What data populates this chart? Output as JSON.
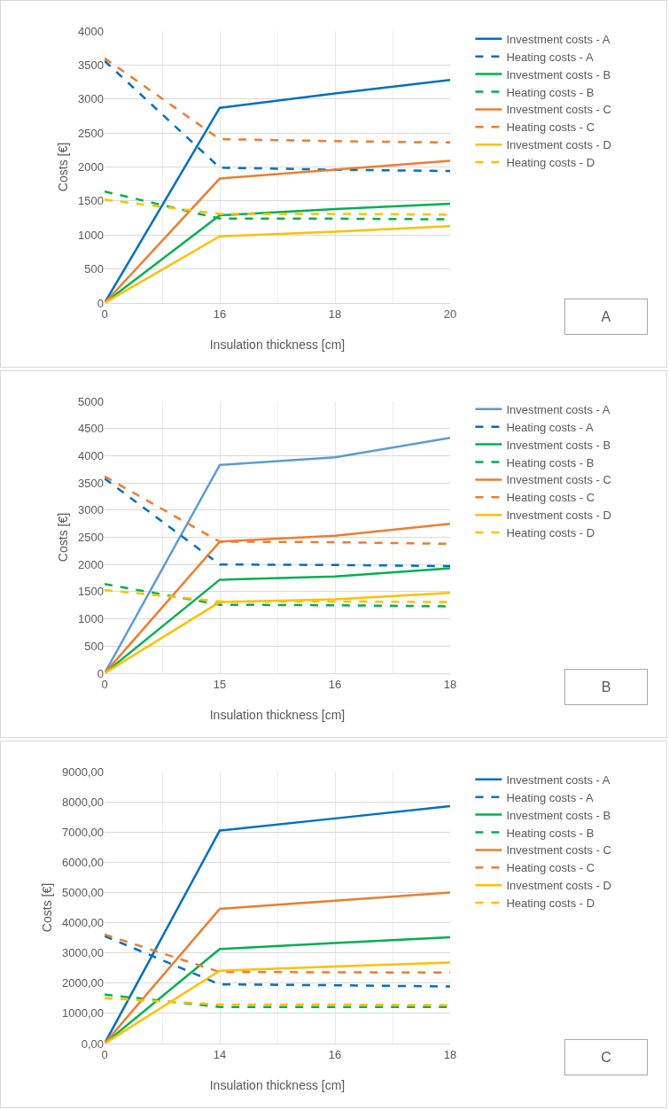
{
  "chart_data": [
    {
      "type": "line",
      "categories": [
        "0",
        "16",
        "18",
        "20"
      ],
      "xlabel": "Insulation thickness [cm]",
      "ylabel": "Costs [€]",
      "ylim": [
        0,
        4000
      ],
      "yticks": [
        0,
        500,
        1000,
        1500,
        2000,
        2500,
        3000,
        3500,
        4000
      ],
      "grid": true,
      "legend": "right",
      "marker": "none",
      "annotations": [
        "A"
      ],
      "series": [
        {
          "name": "Investment costs - A",
          "color": "#0070c0",
          "line_style": "solid",
          "values": [
            0,
            2870,
            3080,
            3280
          ]
        },
        {
          "name": "Heating costs - A",
          "color": "#0070c0",
          "line_style": "dashed",
          "values": [
            3560,
            1990,
            1960,
            1940
          ]
        },
        {
          "name": "Investment costs - B",
          "color": "#00b050",
          "line_style": "solid",
          "values": [
            0,
            1290,
            1380,
            1460
          ]
        },
        {
          "name": "Heating costs - B",
          "color": "#00b050",
          "line_style": "dashed",
          "values": [
            1640,
            1240,
            1240,
            1230
          ]
        },
        {
          "name": "Investment costs - C",
          "color": "#ed7d31",
          "line_style": "solid",
          "values": [
            0,
            1830,
            1960,
            2090
          ]
        },
        {
          "name": "Heating costs - C",
          "color": "#ed7d31",
          "line_style": "dashed",
          "values": [
            3600,
            2410,
            2380,
            2360
          ]
        },
        {
          "name": "Investment costs - D",
          "color": "#ffc000",
          "line_style": "solid",
          "values": [
            0,
            980,
            1050,
            1130
          ]
        },
        {
          "name": "Heating costs - D",
          "color": "#ffc000",
          "line_style": "dashed",
          "values": [
            1520,
            1310,
            1310,
            1300
          ]
        }
      ]
    },
    {
      "type": "line",
      "categories": [
        "0",
        "15",
        "16",
        "18"
      ],
      "xlabel": "Insulation thickness [cm]",
      "ylabel": "Costs [€]",
      "ylim": [
        0,
        5000
      ],
      "yticks": [
        0,
        500,
        1000,
        1500,
        2000,
        2500,
        3000,
        3500,
        4000,
        4500,
        5000
      ],
      "grid": true,
      "legend": "right",
      "marker": "none",
      "annotations": [
        "B"
      ],
      "series": [
        {
          "name": "Investment costs - A",
          "color": "#5b9bd5",
          "line_style": "solid",
          "values": [
            0,
            3830,
            3970,
            4330
          ]
        },
        {
          "name": "Heating costs - A",
          "color": "#0070c0",
          "line_style": "dashed",
          "values": [
            3580,
            2000,
            1990,
            1970
          ]
        },
        {
          "name": "Investment costs - B",
          "color": "#00b050",
          "line_style": "solid",
          "values": [
            0,
            1720,
            1780,
            1930
          ]
        },
        {
          "name": "Heating costs - B",
          "color": "#00b050",
          "line_style": "dashed",
          "values": [
            1640,
            1260,
            1250,
            1230
          ]
        },
        {
          "name": "Investment costs - C",
          "color": "#ed7d31",
          "line_style": "solid",
          "values": [
            0,
            2420,
            2530,
            2750
          ]
        },
        {
          "name": "Heating costs - C",
          "color": "#ed7d31",
          "line_style": "dashed",
          "values": [
            3620,
            2420,
            2410,
            2380
          ]
        },
        {
          "name": "Investment costs - D",
          "color": "#ffc000",
          "line_style": "solid",
          "values": [
            0,
            1310,
            1360,
            1480
          ]
        },
        {
          "name": "Heating costs - D",
          "color": "#ffc000",
          "line_style": "dashed",
          "values": [
            1530,
            1320,
            1320,
            1310
          ]
        }
      ]
    },
    {
      "type": "line",
      "categories": [
        "0",
        "14",
        "16",
        "18"
      ],
      "xlabel": "Insulation thickness [cm]",
      "ylabel": "Costs [€]",
      "ylim": [
        0,
        9000
      ],
      "yticks": [
        {
          "value": 0,
          "label": "0,00"
        },
        {
          "value": 1000,
          "label": "1000,00"
        },
        {
          "value": 2000,
          "label": "2000,00"
        },
        {
          "value": 3000,
          "label": "3000,00"
        },
        {
          "value": 4000,
          "label": "4000,00"
        },
        {
          "value": 5000,
          "label": "5000,00"
        },
        {
          "value": 6000,
          "label": "6000,00"
        },
        {
          "value": 7000,
          "label": "7000,00"
        },
        {
          "value": 8000,
          "label": "8000,00"
        },
        {
          "value": 9000,
          "label": "9000,00"
        }
      ],
      "grid": true,
      "legend": "right",
      "marker": "none",
      "annotations": [
        "C"
      ],
      "series": [
        {
          "name": "Investment costs - A",
          "color": "#0070c0",
          "line_style": "solid",
          "values": [
            0,
            7050,
            7450,
            7860
          ]
        },
        {
          "name": "Heating costs - A",
          "color": "#0070c0",
          "line_style": "dashed",
          "values": [
            3560,
            1960,
            1930,
            1890
          ]
        },
        {
          "name": "Investment costs - B",
          "color": "#00b050",
          "line_style": "solid",
          "values": [
            0,
            3130,
            3330,
            3520
          ]
        },
        {
          "name": "Heating costs - B",
          "color": "#00b050",
          "line_style": "dashed",
          "values": [
            1620,
            1210,
            1210,
            1210
          ]
        },
        {
          "name": "Investment costs - C",
          "color": "#ed7d31",
          "line_style": "solid",
          "values": [
            0,
            4460,
            4730,
            5000
          ]
        },
        {
          "name": "Heating costs - C",
          "color": "#ed7d31",
          "line_style": "dashed",
          "values": [
            3610,
            2370,
            2360,
            2350
          ]
        },
        {
          "name": "Investment costs - D",
          "color": "#ffc000",
          "line_style": "solid",
          "values": [
            0,
            2410,
            2550,
            2680
          ]
        },
        {
          "name": "Heating costs - D",
          "color": "#ffc000",
          "line_style": "dashed",
          "values": [
            1500,
            1290,
            1290,
            1270
          ]
        }
      ]
    }
  ]
}
